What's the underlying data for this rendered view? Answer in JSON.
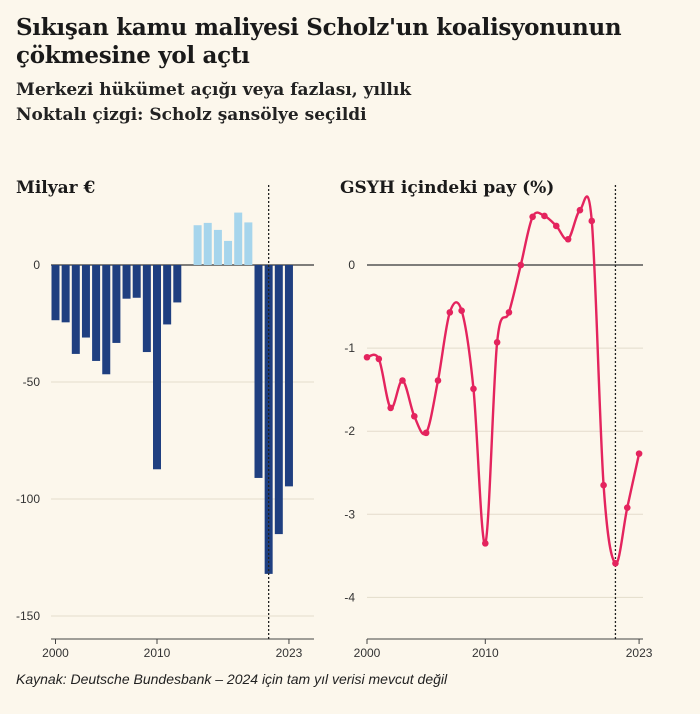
{
  "header": {
    "title": "Sıkışan kamu maliyesi Scholz'un koalisyonunun çökmesine yol açtı",
    "subtitle1": "Merkezi hükümet açığı veya fazlası, yıllık",
    "subtitle2": "Noktalı çizgi: Scholz şansölye seçildi"
  },
  "source": "Kaynak: Deutsche Bundesbank – 2024 için tam yıl verisi mevcut değil",
  "colors": {
    "deficit": "#1f3f80",
    "surplus": "#a6d5ec",
    "line": "#e4245e",
    "background": "#fcf7ec"
  },
  "chart_data": [
    {
      "type": "bar",
      "title": "Milyar €",
      "x": [
        2000,
        2001,
        2002,
        2003,
        2004,
        2005,
        2006,
        2007,
        2008,
        2009,
        2010,
        2011,
        2012,
        2013,
        2014,
        2015,
        2016,
        2017,
        2018,
        2019,
        2020,
        2021,
        2022,
        2023
      ],
      "values": [
        -23.6,
        -24.5,
        -38,
        -31,
        -41,
        -46.7,
        -33.3,
        -14.4,
        -14,
        -37.2,
        -87.3,
        -25.4,
        -16,
        0,
        17,
        18,
        15,
        10.3,
        22.4,
        18.2,
        -91,
        -132,
        -115,
        -94.6
      ],
      "ylim": [
        -158,
        30
      ],
      "yticks": [
        "0",
        "-50",
        "-100",
        "-150"
      ],
      "ytick_values": [
        0,
        -50,
        -100,
        -150
      ],
      "xticks": [
        "2000",
        "2010",
        "2023"
      ],
      "xtick_values": [
        2000,
        2010,
        2023
      ],
      "marker_year": 2021,
      "grid": true
    },
    {
      "type": "line",
      "title": "GSYH içindeki pay (%)",
      "x": [
        2000,
        2001,
        2002,
        2003,
        2004,
        2005,
        2006,
        2007,
        2008,
        2009,
        2010,
        2011,
        2012,
        2013,
        2014,
        2015,
        2016,
        2017,
        2018,
        2019,
        2020,
        2021,
        2022,
        2023
      ],
      "values": [
        -1.11,
        -1.13,
        -1.72,
        -1.39,
        -1.82,
        -2.02,
        -1.39,
        -0.57,
        -0.55,
        -1.49,
        -3.35,
        -0.93,
        -0.57,
        0.0,
        0.58,
        0.59,
        0.47,
        0.31,
        0.66,
        0.53,
        -2.65,
        -3.59,
        -2.92,
        -2.27
      ],
      "ylim": [
        -4.5,
        0.9
      ],
      "yticks": [
        "0",
        "-1",
        "-2",
        "-3",
        "-4"
      ],
      "ytick_values": [
        0,
        -1,
        -2,
        -3,
        -4
      ],
      "xticks": [
        "2000",
        "2010",
        "2023"
      ],
      "xtick_values": [
        2000,
        2010,
        2023
      ],
      "marker_year": 2021,
      "grid": true
    }
  ]
}
